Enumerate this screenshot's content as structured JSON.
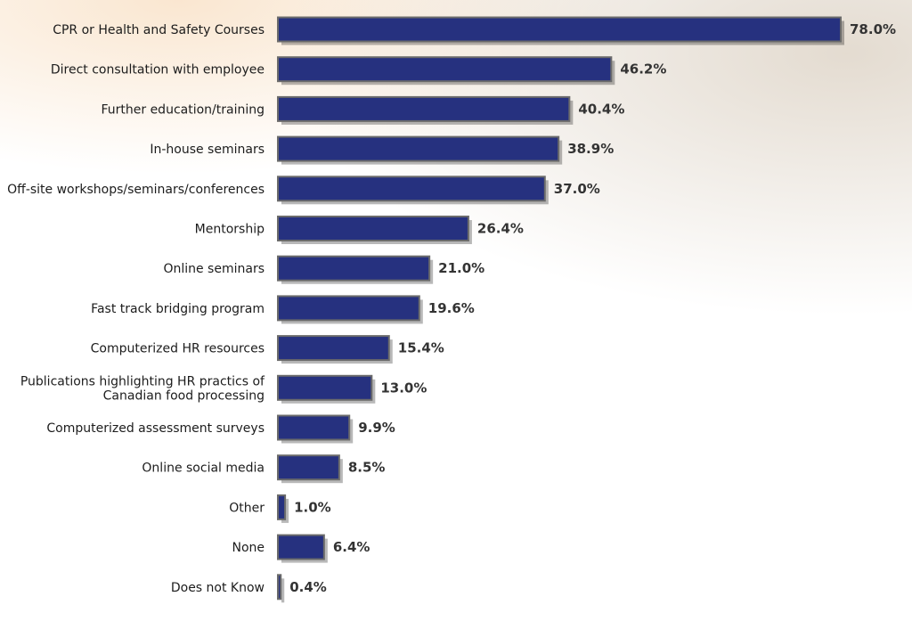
{
  "chart_data": {
    "type": "bar",
    "orientation": "horizontal",
    "categories": [
      "CPR or Health and Safety Courses",
      "Direct consultation with employee",
      "Further education/training",
      "In-house seminars",
      "Off-site workshops/seminars/conferences",
      "Mentorship",
      "Online seminars",
      "Fast track bridging program",
      "Computerized HR resources",
      "Publications highlighting HR practics of Canadian food processing",
      "Computerized assessment surveys",
      "Online social media",
      "Other",
      "None",
      "Does not Know"
    ],
    "category_lines": [
      [
        "CPR or Health and Safety Courses"
      ],
      [
        "Direct consultation with employee"
      ],
      [
        "Further education/training"
      ],
      [
        "In-house seminars"
      ],
      [
        "Off-site workshops/seminars/conferences"
      ],
      [
        "Mentorship"
      ],
      [
        "Online seminars"
      ],
      [
        "Fast track bridging program"
      ],
      [
        "Computerized HR resources"
      ],
      [
        "Publications highlighting HR practics of",
        "Canadian food processing"
      ],
      [
        "Computerized assessment surveys"
      ],
      [
        "Online social media"
      ],
      [
        "Other"
      ],
      [
        "None"
      ],
      [
        "Does not Know"
      ]
    ],
    "values": [
      78.0,
      46.2,
      40.4,
      38.9,
      37.0,
      26.4,
      21.0,
      19.6,
      15.4,
      13.0,
      9.9,
      8.5,
      1.0,
      6.4,
      0.4
    ],
    "value_labels": [
      "78.0%",
      "46.2%",
      "40.4%",
      "38.9%",
      "37.0%",
      "26.4%",
      "21.0%",
      "19.6%",
      "15.4%",
      "13.0%",
      "9.9%",
      "8.5%",
      "1.0%",
      "6.4%",
      "0.4%"
    ],
    "xlim": [
      0,
      78
    ],
    "unit": "%",
    "grid": false,
    "legend": "none",
    "title": "",
    "xlabel": "",
    "ylabel": "",
    "colors": {
      "bar": "#26317f",
      "bar_border": "#6b6b6b",
      "text": "#1c1c1c",
      "value_text": "#333333"
    }
  }
}
